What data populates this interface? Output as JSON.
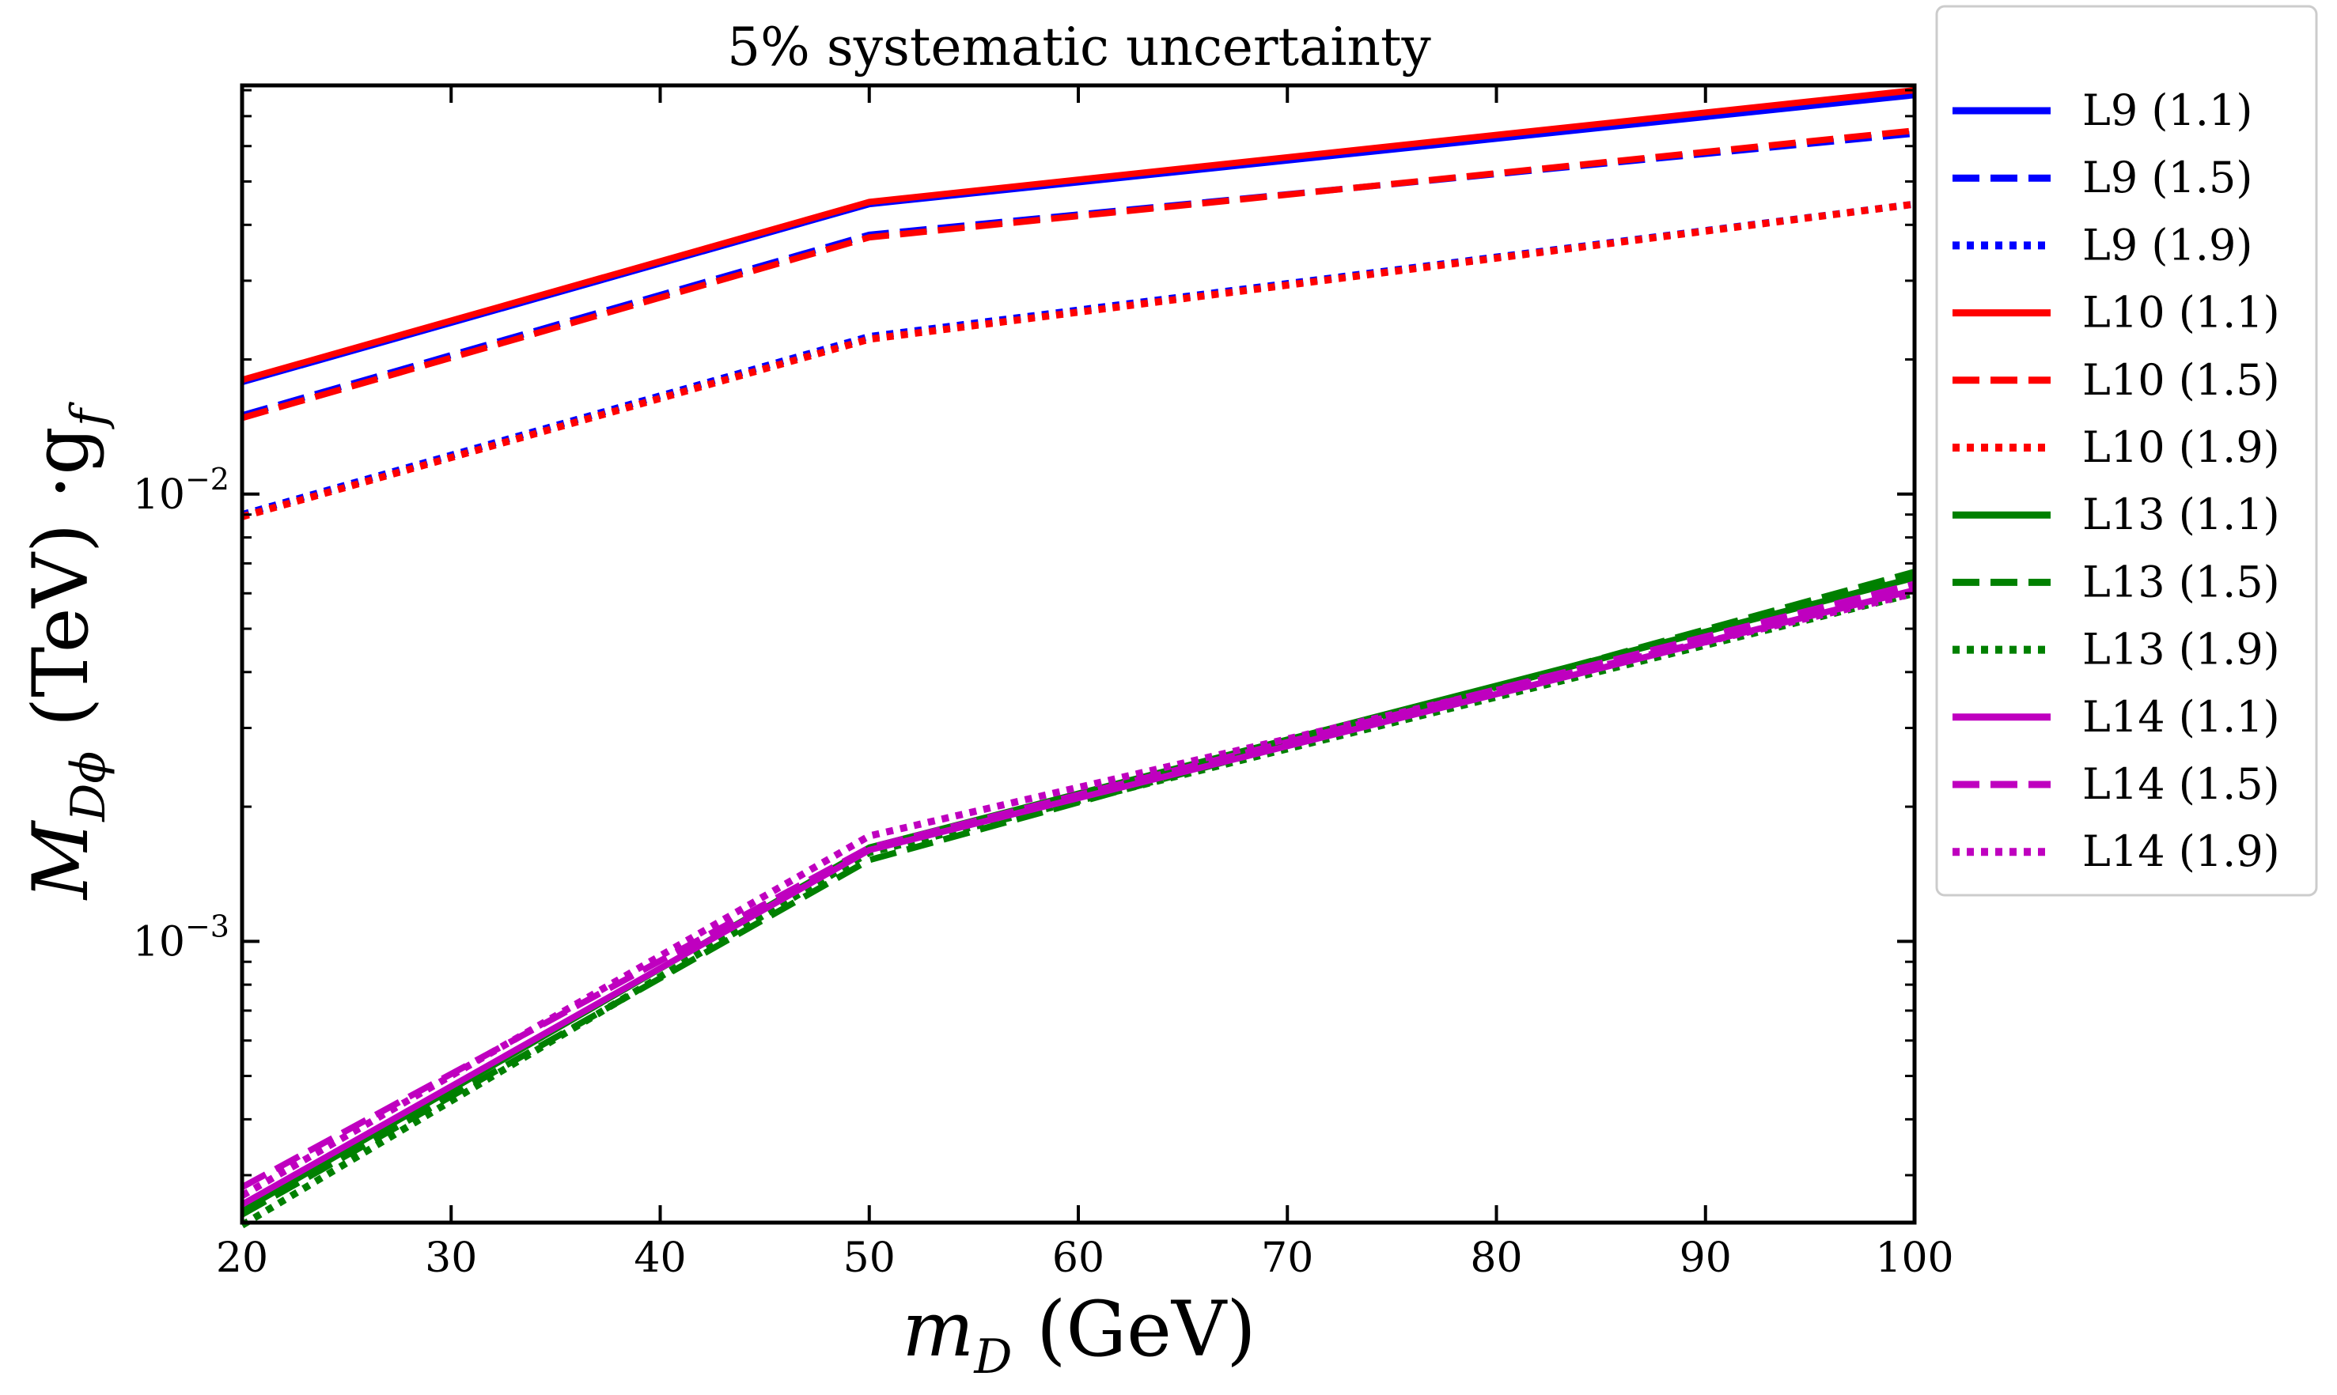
{
  "chart_data": {
    "type": "line",
    "title": "5% systematic uncertainty",
    "xlabel": {
      "prefix": "m",
      "sub": "D",
      "suffix": " (GeV)"
    },
    "ylabel": {
      "prefix": "M",
      "sub": "Dϕ",
      "suffix": " (TeV) ·g",
      "sub2": "f"
    },
    "yscale": "log",
    "xlim": [
      20,
      100
    ],
    "ylim": [
      0.000235,
      0.082
    ],
    "xticks": [
      20,
      30,
      40,
      50,
      60,
      70,
      80,
      90,
      100
    ],
    "xtick_labels": [
      "20",
      "30",
      "40",
      "50",
      "60",
      "70",
      "80",
      "90",
      "100"
    ],
    "yticks_major": [
      {
        "value": 0.001,
        "base": "10",
        "exp": "−3"
      },
      {
        "value": 0.01,
        "base": "10",
        "exp": "−2"
      }
    ],
    "x": [
      20,
      50,
      100
    ],
    "series": [
      {
        "name": "L9 (1.1)",
        "color": "#0000ff",
        "style": "solid",
        "values": [
          0.0178,
          0.0445,
          0.078
        ]
      },
      {
        "name": "L9 (1.5)",
        "color": "#0000ff",
        "style": "dashed",
        "values": [
          0.015,
          0.038,
          0.064
        ]
      },
      {
        "name": "L9 (1.9)",
        "color": "#0000ff",
        "style": "dotted",
        "values": [
          0.009,
          0.0225,
          0.0445
        ]
      },
      {
        "name": "L10 (1.1)",
        "color": "#ff0000",
        "style": "solid",
        "values": [
          0.018,
          0.045,
          0.08
        ]
      },
      {
        "name": "L10 (1.5)",
        "color": "#ff0000",
        "style": "dashed",
        "values": [
          0.0148,
          0.0375,
          0.065
        ]
      },
      {
        "name": "L10 (1.9)",
        "color": "#ff0000",
        "style": "dotted",
        "values": [
          0.0089,
          0.0222,
          0.0445
        ]
      },
      {
        "name": "L13 (1.1)",
        "color": "#008000",
        "style": "solid",
        "values": [
          0.00025,
          0.00162,
          0.0065
        ]
      },
      {
        "name": "L13 (1.5)",
        "color": "#008000",
        "style": "dashed",
        "values": [
          0.000245,
          0.00152,
          0.0067
        ]
      },
      {
        "name": "L13 (1.9)",
        "color": "#008000",
        "style": "dotted",
        "values": [
          0.000232,
          0.00158,
          0.006
        ]
      },
      {
        "name": "L14 (1.1)",
        "color": "#bf00bf",
        "style": "solid",
        "values": [
          0.000258,
          0.0016,
          0.0061
        ]
      },
      {
        "name": "L14 (1.5)",
        "color": "#bf00bf",
        "style": "dashed",
        "values": [
          0.000282,
          0.00162,
          0.0063
        ]
      },
      {
        "name": "L14 (1.9)",
        "color": "#bf00bf",
        "style": "dotted",
        "values": [
          0.00027,
          0.00172,
          0.006
        ]
      }
    ],
    "legend_position": "outside-right"
  }
}
